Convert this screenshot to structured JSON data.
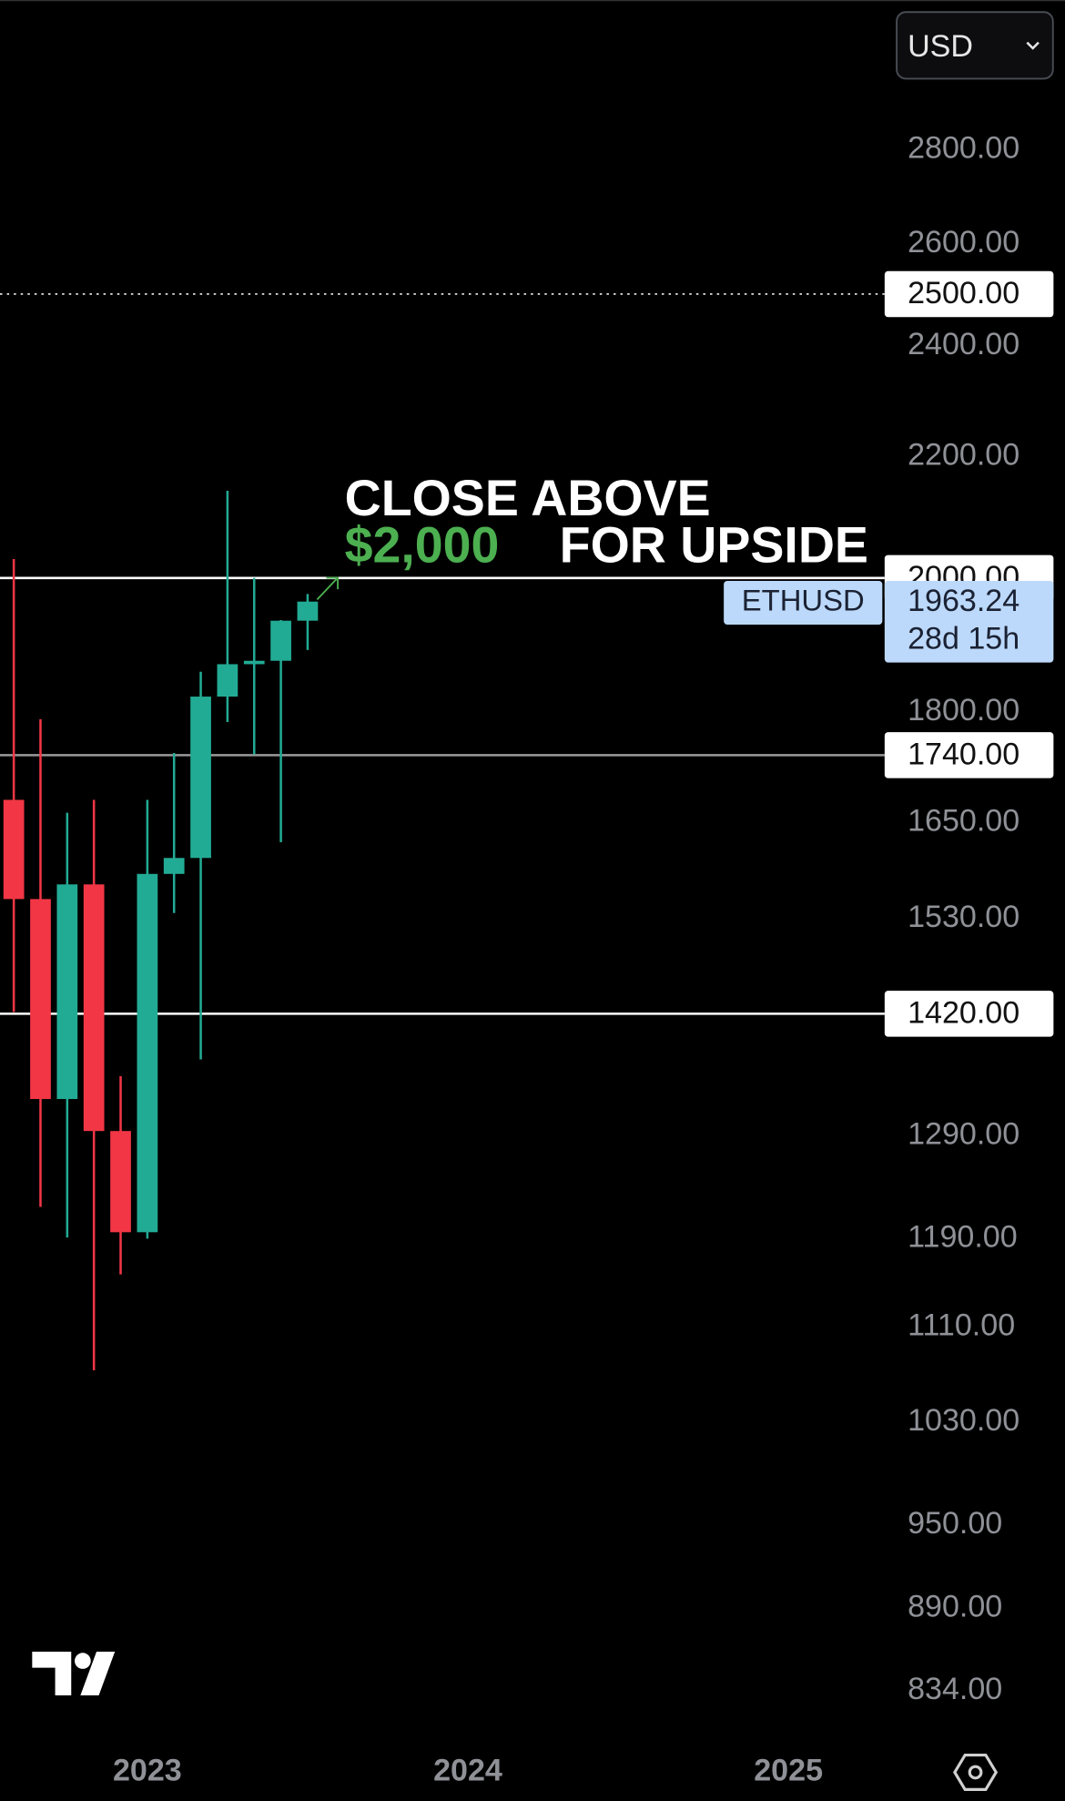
{
  "chart_data": {
    "type": "candlestick",
    "currency": "USD",
    "log_scale": true,
    "categories": [
      null,
      null,
      null,
      null,
      null,
      "2023",
      null,
      null,
      null,
      null,
      null,
      null,
      null,
      null,
      null,
      null,
      null,
      "2024",
      null,
      null,
      null,
      null,
      null,
      null,
      null,
      null,
      null,
      null,
      null,
      "2025"
    ],
    "series": [
      {
        "name": "ETHUSD",
        "up_color": "#22ab94",
        "down_color": "#f23645",
        "open": [
          1680,
          1554,
          1328,
          1572,
          1295,
          1196,
          1585,
          1605,
          1822,
          1869,
          1874,
          1934,
          null,
          null,
          null,
          null,
          null,
          null,
          null,
          null,
          null,
          null,
          null,
          null,
          null,
          null,
          null,
          null,
          null,
          null
        ],
        "high": [
          2030,
          1790,
          1663,
          1680,
          1352,
          1680,
          1743,
          1858,
          2142,
          2000,
          1935,
          1975,
          null,
          null,
          null,
          null,
          null,
          null,
          null,
          null,
          null,
          null,
          null,
          null,
          null,
          null,
          null,
          null,
          null,
          null
        ],
        "low": [
          1422,
          1220,
          1191,
          1073,
          1157,
          1190,
          1537,
          1370,
          1786,
          1741,
          1625,
          1890,
          null,
          null,
          null,
          null,
          null,
          null,
          null,
          null,
          null,
          null,
          null,
          null,
          null,
          null,
          null,
          null,
          null,
          null
        ],
        "close": [
          1554,
          1328,
          1572,
          1295,
          1196,
          1585,
          1605,
          1822,
          1869,
          1874,
          1934,
          1963.24,
          null,
          null,
          null,
          null,
          null,
          null,
          null,
          null,
          null,
          null,
          null,
          null,
          null,
          null,
          null,
          null,
          null,
          null
        ]
      }
    ],
    "ylim": [
      806,
      3150
    ],
    "yticks": [
      {
        "value": 2800,
        "label": "2800.00"
      },
      {
        "value": 2600,
        "label": "2600.00"
      },
      {
        "value": 2400,
        "label": "2400.00"
      },
      {
        "value": 2200,
        "label": "2200.00"
      },
      {
        "value": 1800,
        "label": "1800.00"
      },
      {
        "value": 1650,
        "label": "1650.00"
      },
      {
        "value": 1530,
        "label": "1530.00"
      },
      {
        "value": 1290,
        "label": "1290.00"
      },
      {
        "value": 1190,
        "label": "1190.00"
      },
      {
        "value": 1110,
        "label": "1110.00"
      },
      {
        "value": 1030,
        "label": "1030.00"
      },
      {
        "value": 950,
        "label": "950.00"
      },
      {
        "value": 890,
        "label": "890.00"
      },
      {
        "value": 834,
        "label": "834.00"
      }
    ],
    "levels": [
      {
        "value": 2500,
        "label": "2500.00",
        "color": "#d0d0d0",
        "dotted": true
      },
      {
        "value": 2000,
        "label": "2000.00",
        "color": "#ffffff",
        "dotted": false
      },
      {
        "value": 1740,
        "label": "1740.00",
        "color": "#9a9a9a",
        "dotted": false
      },
      {
        "value": 1420,
        "label": "1420.00",
        "color": "#ffffff",
        "dotted": false
      }
    ],
    "last_price": {
      "symbol": "ETHUSD",
      "value": 1963.24,
      "countdown": "28d 15h"
    },
    "annotation": {
      "text1": "CLOSE ABOVE",
      "highlight": "$2,000",
      "text2": "FOR UPSIDE",
      "color": "#4caf50"
    }
  }
}
